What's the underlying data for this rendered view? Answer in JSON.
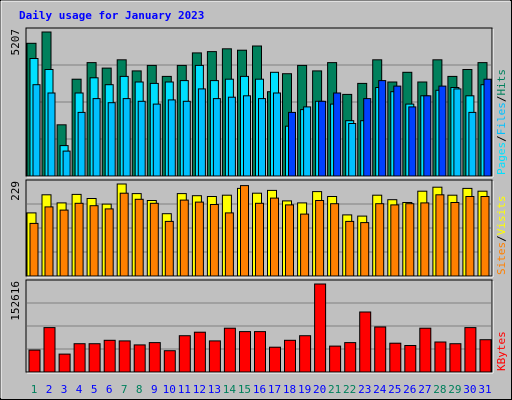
{
  "title": "Daily usage for January 2023",
  "colors": {
    "background": "#c0c0c0",
    "hits": "#00805c",
    "files": "#00e0ff",
    "pages": "#00c0ff",
    "pages_highlight": "#0040ff",
    "visits": "#ffff00",
    "sites": "#ff8000",
    "kbytes": "#ff0000",
    "title": "#0000ff",
    "weekend_day": "#00805c",
    "weekday": "#0000ff"
  },
  "chart_data": [
    {
      "type": "bar",
      "title": "Daily usage for January 2023",
      "panel": "hits-files-pages",
      "ylabel_parts": [
        "Pages",
        "/",
        "Files",
        "/",
        "Hits"
      ],
      "ymax_label": "5207",
      "ylim": [
        0,
        5207
      ],
      "categories": [
        "1",
        "2",
        "3",
        "4",
        "5",
        "6",
        "7",
        "8",
        "9",
        "10",
        "11",
        "12",
        "13",
        "14",
        "15",
        "16",
        "17",
        "18",
        "19",
        "20",
        "21",
        "22",
        "23",
        "24",
        "25",
        "26",
        "27",
        "28",
        "29",
        "30",
        "31"
      ],
      "series": [
        {
          "name": "Hits",
          "values": [
            4800,
            5207,
            1850,
            3500,
            4100,
            3900,
            4200,
            3800,
            4000,
            3600,
            4000,
            4450,
            4500,
            4600,
            4550,
            4700,
            3050,
            3700,
            4000,
            3800,
            4100,
            2950,
            3350,
            4200,
            3400,
            3750,
            3400,
            4200,
            3600,
            3850,
            4100
          ]
        },
        {
          "name": "Files",
          "values": [
            4250,
            3850,
            1100,
            3000,
            3550,
            3300,
            3600,
            3400,
            3350,
            3400,
            3450,
            4000,
            3450,
            3500,
            3600,
            3500,
            3750,
            1800,
            2400,
            2700,
            2600,
            2000,
            2000,
            3200,
            3050,
            2600,
            2900,
            3100,
            3200,
            2900,
            3300
          ]
        },
        {
          "name": "Pages",
          "values": [
            3300,
            3000,
            900,
            2300,
            2800,
            2650,
            2800,
            2700,
            2600,
            2750,
            2700,
            3150,
            2800,
            2850,
            2900,
            2800,
            3000,
            2300,
            2500,
            2700,
            3000,
            1900,
            2800,
            3450,
            3250,
            2500,
            2900,
            3250,
            3150,
            2300,
            3500
          ]
        }
      ]
    },
    {
      "type": "bar",
      "panel": "visits-sites",
      "ylabel_parts": [
        "Sites",
        "/",
        "Visits"
      ],
      "ymax_label": "229",
      "ylim": [
        0,
        229
      ],
      "categories": [
        "1",
        "2",
        "3",
        "4",
        "5",
        "6",
        "7",
        "8",
        "9",
        "10",
        "11",
        "12",
        "13",
        "14",
        "15",
        "16",
        "17",
        "18",
        "19",
        "20",
        "21",
        "22",
        "23",
        "24",
        "25",
        "26",
        "27",
        "28",
        "29",
        "30",
        "31"
      ],
      "series": [
        {
          "name": "Visits",
          "values": [
            157,
            202,
            182,
            203,
            193,
            179,
            229,
            205,
            188,
            155,
            205,
            200,
            198,
            201,
            218,
            206,
            213,
            187,
            182,
            210,
            198,
            152,
            149,
            201,
            190,
            183,
            211,
            221,
            201,
            218,
            211
          ]
        },
        {
          "name": "Sites",
          "values": [
            131,
            172,
            164,
            181,
            175,
            167,
            206,
            191,
            181,
            136,
            189,
            184,
            178,
            157,
            225,
            181,
            194,
            177,
            154,
            188,
            180,
            136,
            133,
            180,
            177,
            180,
            182,
            202,
            183,
            198,
            198
          ]
        }
      ]
    },
    {
      "type": "bar",
      "panel": "kbytes",
      "ylabel_parts": [
        "KBytes"
      ],
      "ymax_label": "152616",
      "ylim": [
        0,
        152616
      ],
      "categories": [
        "1",
        "2",
        "3",
        "4",
        "5",
        "6",
        "7",
        "8",
        "9",
        "10",
        "11",
        "12",
        "13",
        "14",
        "15",
        "16",
        "17",
        "18",
        "19",
        "20",
        "21",
        "22",
        "23",
        "24",
        "25",
        "26",
        "27",
        "28",
        "29",
        "30",
        "31"
      ],
      "series": [
        {
          "name": "KBytes",
          "values": [
            38000,
            77000,
            31000,
            49000,
            49000,
            55000,
            54000,
            47000,
            51000,
            37000,
            63000,
            69000,
            54000,
            76000,
            70000,
            70000,
            43000,
            55000,
            63000,
            152616,
            45000,
            51000,
            104000,
            78000,
            50000,
            46000,
            76000,
            52000,
            49000,
            77000,
            56000
          ]
        }
      ]
    }
  ],
  "days": [
    "1",
    "2",
    "3",
    "4",
    "5",
    "6",
    "7",
    "8",
    "9",
    "10",
    "11",
    "12",
    "13",
    "14",
    "15",
    "16",
    "17",
    "18",
    "19",
    "20",
    "21",
    "22",
    "23",
    "24",
    "25",
    "26",
    "27",
    "28",
    "29",
    "30",
    "31"
  ],
  "weekend_days": [
    1,
    7,
    8,
    14,
    15,
    21,
    22,
    28,
    29
  ]
}
